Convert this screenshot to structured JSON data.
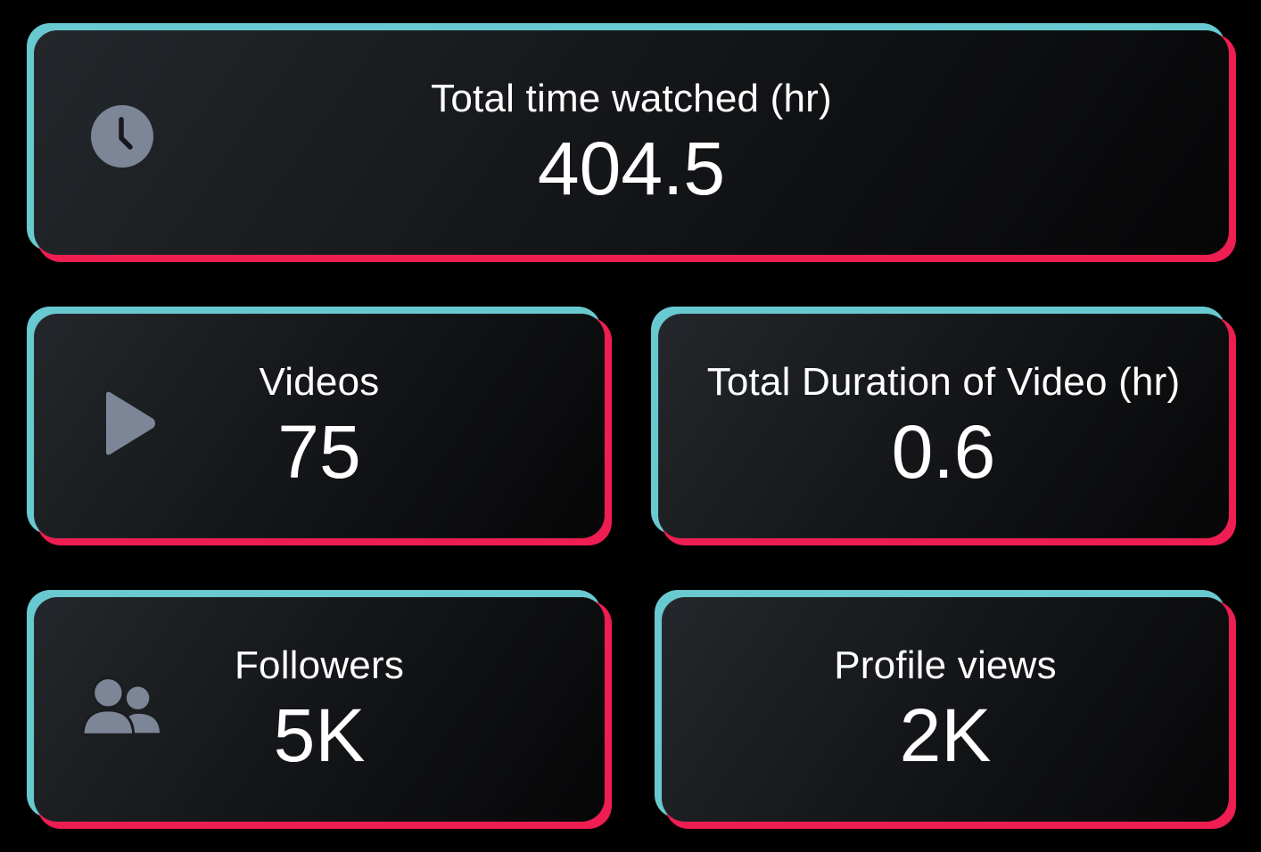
{
  "theme": {
    "background": "#000000",
    "accent_cyan": "#69c9d0",
    "accent_red": "#ee1d52",
    "card_face": "#1c1e21",
    "icon_color": "#7c8696",
    "text_color": "#ffffff"
  },
  "cards": {
    "time_watched": {
      "label": "Total time watched (hr)",
      "value": "404.5",
      "icon": "clock-icon"
    },
    "videos": {
      "label": "Videos",
      "value": "75",
      "icon": "play-icon"
    },
    "total_duration": {
      "label": "Total Duration of Video (hr)",
      "value": "0.6"
    },
    "followers": {
      "label": "Followers",
      "value": "5K",
      "icon": "users-icon"
    },
    "profile_views": {
      "label": "Profile views",
      "value": "2K"
    }
  }
}
